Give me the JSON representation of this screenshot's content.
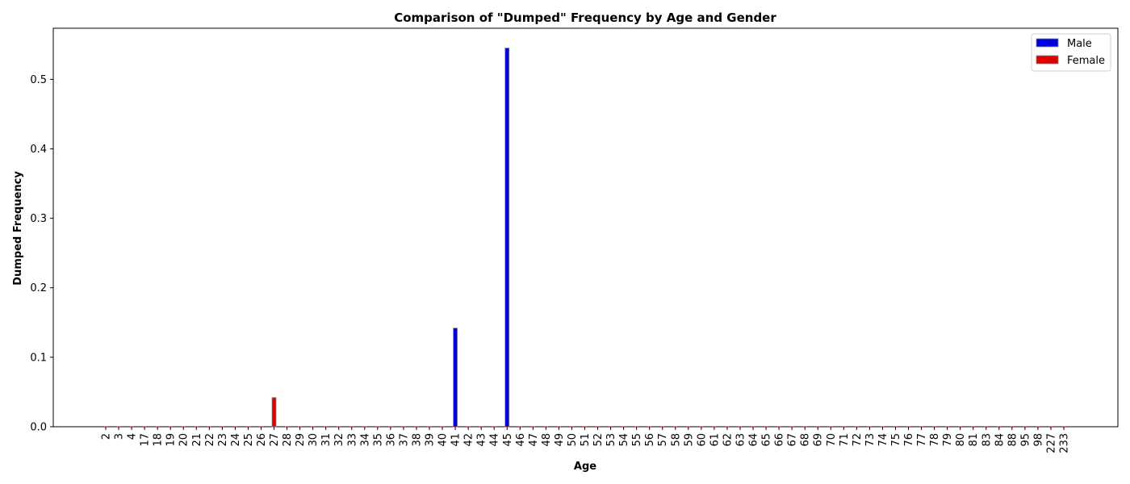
{
  "chart_data": {
    "type": "bar",
    "title": "Comparison of \"Dumped\" Frequency by Age and Gender",
    "xlabel": "Age",
    "ylabel": "Dumped Frequency",
    "ylim": [
      0,
      0.5735
    ],
    "yticks": [
      0.0,
      0.1,
      0.2,
      0.3,
      0.4,
      0.5
    ],
    "ytick_labels": [
      "0.0",
      "0.1",
      "0.2",
      "0.3",
      "0.4",
      "0.5"
    ],
    "grid": false,
    "legend_position": "top-right",
    "categories": [
      "2",
      "3",
      "4",
      "17",
      "18",
      "19",
      "20",
      "21",
      "22",
      "23",
      "24",
      "25",
      "26",
      "27",
      "28",
      "29",
      "30",
      "31",
      "32",
      "33",
      "34",
      "35",
      "36",
      "37",
      "38",
      "39",
      "40",
      "41",
      "42",
      "43",
      "44",
      "45",
      "46",
      "47",
      "48",
      "49",
      "50",
      "51",
      "52",
      "53",
      "54",
      "55",
      "56",
      "57",
      "58",
      "59",
      "60",
      "61",
      "62",
      "63",
      "64",
      "65",
      "66",
      "67",
      "68",
      "69",
      "70",
      "71",
      "72",
      "73",
      "74",
      "75",
      "76",
      "77",
      "78",
      "79",
      "80",
      "81",
      "83",
      "84",
      "88",
      "95",
      "98",
      "227",
      "233"
    ],
    "series": [
      {
        "name": "Male",
        "color": "#0000dd",
        "values": [
          0,
          0,
          0,
          0,
          0,
          0,
          0,
          0,
          0,
          0,
          0,
          0,
          0,
          0,
          0,
          0,
          0,
          0,
          0,
          0,
          0,
          0,
          0,
          0,
          0,
          0,
          0,
          0.142,
          0,
          0,
          0,
          0.545,
          0,
          0,
          0,
          0,
          0,
          0,
          0,
          0,
          0,
          0,
          0,
          0,
          0,
          0,
          0,
          0,
          0,
          0,
          0,
          0,
          0,
          0,
          0,
          0,
          0,
          0,
          0,
          0,
          0,
          0,
          0,
          0,
          0,
          0,
          0,
          0,
          0,
          0,
          0,
          0,
          0,
          0,
          0
        ]
      },
      {
        "name": "Female",
        "color": "#dd0000",
        "values": [
          0,
          0,
          0,
          0,
          0,
          0,
          0,
          0,
          0,
          0,
          0,
          0,
          0,
          0.042,
          0,
          0,
          0,
          0,
          0,
          0,
          0,
          0,
          0,
          0,
          0,
          0,
          0,
          0,
          0,
          0,
          0,
          0,
          0,
          0,
          0,
          0,
          0,
          0,
          0,
          0,
          0,
          0,
          0,
          0,
          0,
          0,
          0,
          0,
          0,
          0,
          0,
          0,
          0,
          0,
          0,
          0,
          0,
          0,
          0,
          0,
          0,
          0,
          0,
          0,
          0,
          0,
          0,
          0,
          0,
          0,
          0,
          0,
          0,
          0,
          0
        ]
      }
    ]
  }
}
